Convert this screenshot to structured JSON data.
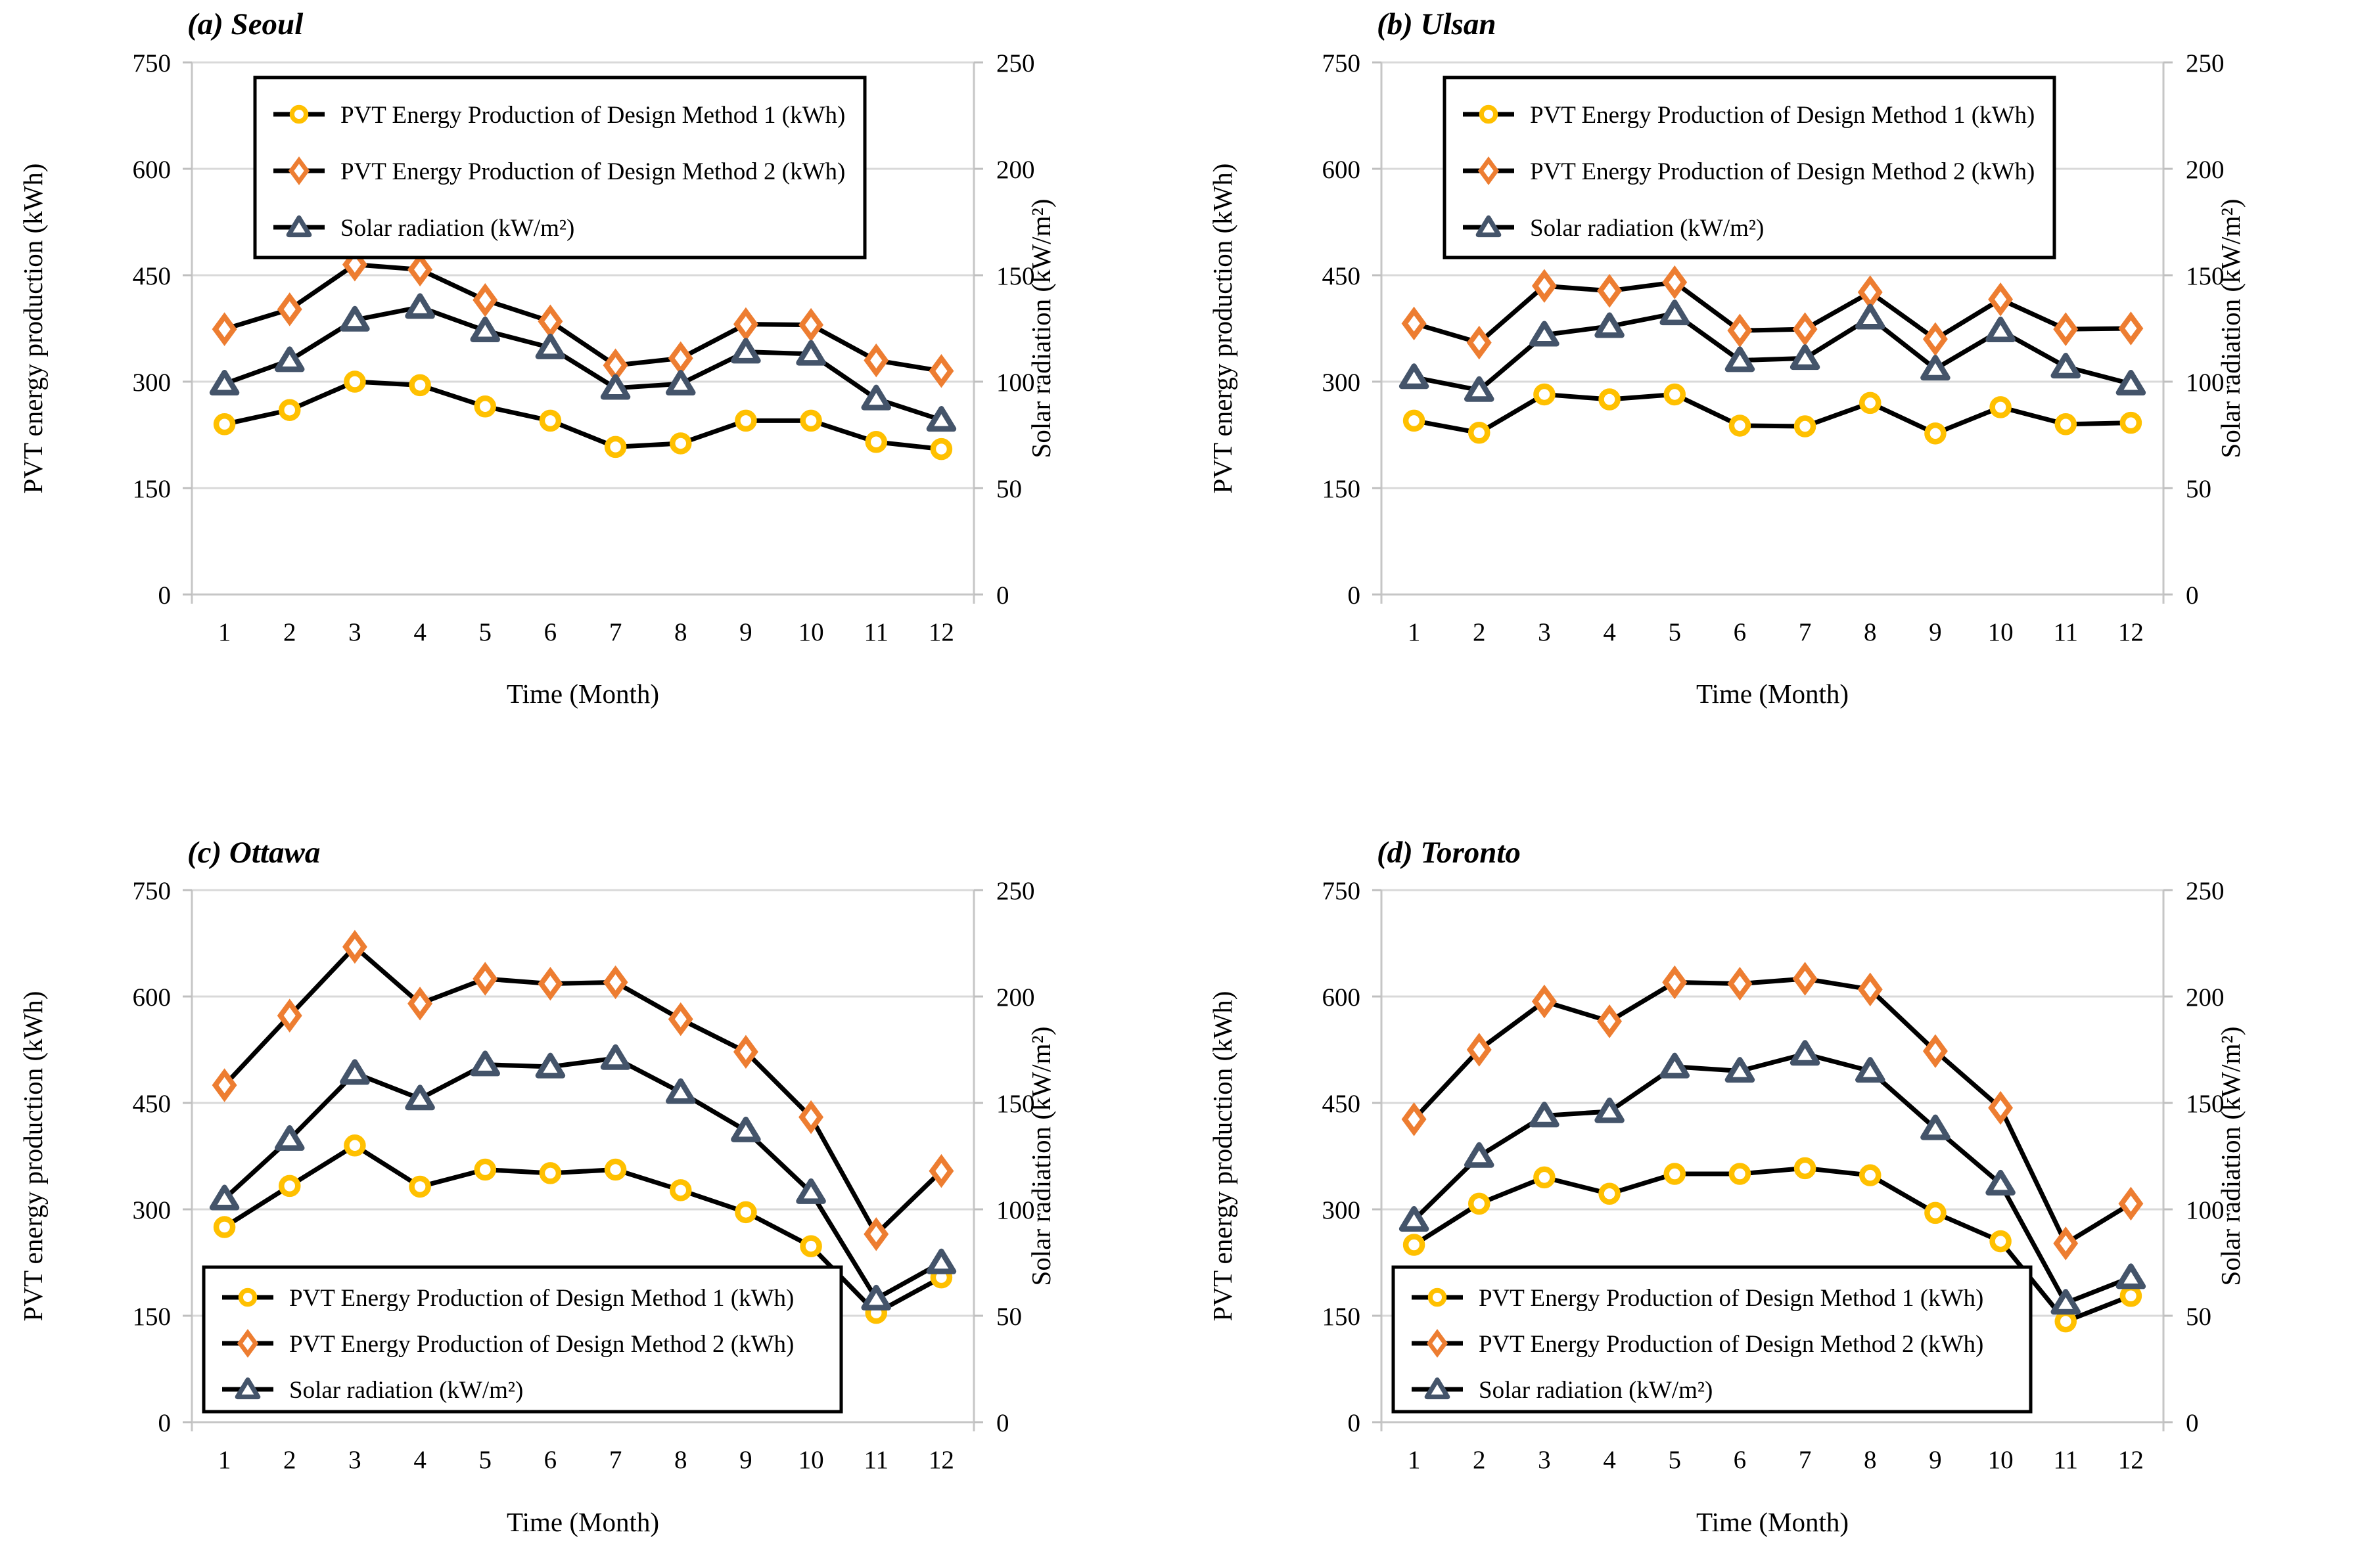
{
  "figure": {
    "axes": {
      "left_title": "PVT energy production (kWh)",
      "right_title": "Solar radiation (kW/m²)",
      "x_title": "Time (Month)",
      "left_ticks": [
        0,
        150,
        300,
        450,
        600,
        750
      ],
      "right_ticks": [
        0,
        50,
        100,
        150,
        200,
        250
      ],
      "left_range": [
        0,
        750
      ],
      "right_range": [
        0,
        250
      ],
      "grid": true
    },
    "colors": {
      "method1": "#FFC000",
      "method2": "#ED7D31",
      "solar": "#44546A",
      "line": "#000000",
      "grid": "#D9D9D9",
      "axis_line": "#C6C6C6",
      "tick": "#BFBFBF",
      "text": "#000000",
      "legend_border": "#000000",
      "background": "#FFFFFF"
    }
  },
  "chart_data": [
    {
      "type": "line",
      "title": "(a) Seoul",
      "xlabel": "Time (Month)",
      "ylabel_left": "PVT energy production (kWh)",
      "ylabel_right": "Solar radiation (kW/m²)",
      "x": [
        1,
        2,
        3,
        4,
        5,
        6,
        7,
        8,
        9,
        10,
        11,
        12
      ],
      "ylim_left": [
        0,
        750
      ],
      "ylim_right": [
        0,
        250
      ],
      "grid": true,
      "legend_position": "top-left-inside",
      "series": [
        {
          "name": "PVT Energy Production of Design Method 1 (kWh)",
          "axis": "left",
          "marker": "circle",
          "color": "#FFC000",
          "values": [
            240,
            260,
            300,
            295,
            265,
            245,
            208,
            213,
            245,
            245,
            215,
            205
          ]
        },
        {
          "name": "PVT Energy Production of Design Method 2 (kWh)",
          "axis": "left",
          "marker": "diamond",
          "color": "#ED7D31",
          "values": [
            374,
            402,
            465,
            458,
            415,
            385,
            323,
            333,
            381,
            380,
            330,
            315
          ]
        },
        {
          "name": "Solar radiation (kW/m²)",
          "axis": "right",
          "marker": "triangle",
          "color": "#44546A",
          "values": [
            99,
            110,
            129,
            135,
            124,
            116,
            97,
            99,
            114,
            113,
            92,
            82
          ]
        }
      ]
    },
    {
      "type": "line",
      "title": "(b) Ulsan",
      "xlabel": "Time (Month)",
      "ylabel_left": "PVT energy production (kWh)",
      "ylabel_right": "Solar radiation (kW/m²)",
      "x": [
        1,
        2,
        3,
        4,
        5,
        6,
        7,
        8,
        9,
        10,
        11,
        12
      ],
      "ylim_left": [
        0,
        750
      ],
      "ylim_right": [
        0,
        250
      ],
      "grid": true,
      "legend_position": "top-left-inside",
      "series": [
        {
          "name": "PVT Energy Production of Design Method 1 (kWh)",
          "axis": "left",
          "marker": "circle",
          "color": "#FFC000",
          "values": [
            245,
            228,
            282,
            275,
            282,
            238,
            237,
            270,
            227,
            264,
            240,
            242
          ]
        },
        {
          "name": "PVT Energy Production of Design Method 2 (kWh)",
          "axis": "left",
          "marker": "diamond",
          "color": "#ED7D31",
          "values": [
            382,
            355,
            435,
            428,
            440,
            372,
            374,
            426,
            360,
            416,
            374,
            375
          ]
        },
        {
          "name": "Solar radiation (kW/m²)",
          "axis": "right",
          "marker": "triangle",
          "color": "#44546A",
          "values": [
            102,
            96,
            122,
            126,
            132,
            110,
            111,
            130,
            106,
            124,
            107,
            99
          ]
        }
      ]
    },
    {
      "type": "line",
      "title": "(c) Ottawa",
      "xlabel": "Time (Month)",
      "ylabel_left": "PVT energy production (kWh)",
      "ylabel_right": "Solar radiation (kW/m²)",
      "x": [
        1,
        2,
        3,
        4,
        5,
        6,
        7,
        8,
        9,
        10,
        11,
        12
      ],
      "ylim_left": [
        0,
        750
      ],
      "ylim_right": [
        0,
        250
      ],
      "grid": true,
      "legend_position": "bottom-left-inside",
      "series": [
        {
          "name": "PVT Energy Production of Design Method 1 (kWh)",
          "axis": "left",
          "marker": "circle",
          "color": "#FFC000",
          "values": [
            275,
            333,
            390,
            332,
            356,
            351,
            356,
            327,
            296,
            248,
            154,
            204
          ]
        },
        {
          "name": "PVT Energy Production of Design Method 2 (kWh)",
          "axis": "left",
          "marker": "diamond",
          "color": "#ED7D31",
          "values": [
            475,
            573,
            670,
            590,
            625,
            618,
            620,
            568,
            522,
            430,
            265,
            354
          ]
        },
        {
          "name": "Solar radiation (kW/m²)",
          "axis": "right",
          "marker": "triangle",
          "color": "#44546A",
          "values": [
            105,
            133,
            164,
            152,
            168,
            167,
            171,
            155,
            137,
            108,
            58,
            75
          ]
        }
      ]
    },
    {
      "type": "line",
      "title": "(d) Toronto",
      "xlabel": "Time (Month)",
      "ylabel_left": "PVT energy production (kWh)",
      "ylabel_right": "Solar radiation (kW/m²)",
      "x": [
        1,
        2,
        3,
        4,
        5,
        6,
        7,
        8,
        9,
        10,
        11,
        12
      ],
      "ylim_left": [
        0,
        750
      ],
      "ylim_right": [
        0,
        250
      ],
      "grid": true,
      "legend_position": "bottom-left-inside",
      "series": [
        {
          "name": "PVT Energy Production of Design Method 1 (kWh)",
          "axis": "left",
          "marker": "circle",
          "color": "#FFC000",
          "values": [
            250,
            308,
            345,
            322,
            350,
            350,
            358,
            348,
            295,
            255,
            142,
            178
          ]
        },
        {
          "name": "PVT Energy Production of Design Method 2 (kWh)",
          "axis": "left",
          "marker": "diamond",
          "color": "#ED7D31",
          "values": [
            427,
            525,
            593,
            565,
            620,
            618,
            625,
            610,
            523,
            443,
            252,
            308
          ]
        },
        {
          "name": "Solar radiation (kW/m²)",
          "axis": "right",
          "marker": "triangle",
          "color": "#44546A",
          "values": [
            95,
            125,
            144,
            146,
            167,
            165,
            173,
            165,
            138,
            112,
            56,
            68
          ]
        }
      ]
    }
  ]
}
